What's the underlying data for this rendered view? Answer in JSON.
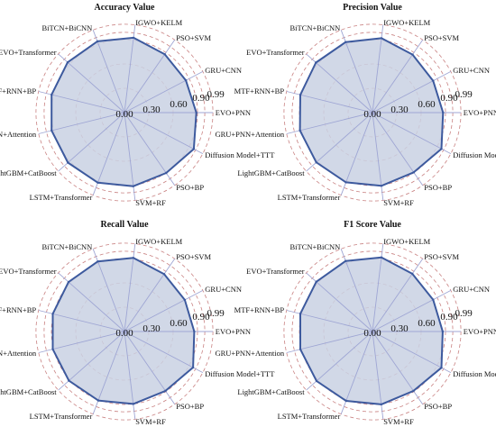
{
  "chart_data": [
    {
      "type": "radar",
      "title": "Accuracy Value",
      "categories": [
        "EVO+PNN",
        "GRU+CNN",
        "PSO+SVM",
        "IGWO+KELM",
        "BiTCN+BiCNN",
        "EVO+Transformer",
        "MTF+RNN+BP",
        "GRU+PNN+Attention",
        "LightGBM+CatBoost",
        "LSTM+Transformer",
        "SVM+RF",
        "PSO+BP",
        "Diffusion Model+TTT"
      ],
      "values": [
        0.885,
        0.855,
        0.875,
        0.93,
        0.94,
        0.935,
        0.925,
        0.925,
        0.93,
        0.925,
        0.915,
        0.905,
        0.965
      ],
      "ticks": [
        "0.00",
        "0.30",
        "0.60",
        "0.90",
        "0.99"
      ],
      "ylim": [
        0,
        1
      ],
      "grid": true
    },
    {
      "type": "radar",
      "title": "Precision Value",
      "categories": [
        "EVO+PNN",
        "GRU+CNN",
        "PSO+SVM",
        "IGWO+KELM",
        "BiTCN+BiCNN",
        "EVO+Transformer",
        "MTF+RNN+BP",
        "GRU+PNN+Attention",
        "LightGBM+CatBoost",
        "LSTM+Transformer",
        "SVM+RF",
        "PSO+BP",
        "Diffusion Model+TTT"
      ],
      "values": [
        0.87,
        0.845,
        0.87,
        0.925,
        0.93,
        0.93,
        0.915,
        0.92,
        0.925,
        0.92,
        0.91,
        0.895,
        0.96
      ],
      "ticks": [
        "0.00",
        "0.30",
        "0.60",
        "0.90",
        "0.99"
      ],
      "ylim": [
        0,
        1
      ],
      "grid": true
    },
    {
      "type": "radar",
      "title": "Recall Value",
      "categories": [
        "EVO+PNN",
        "GRU+CNN",
        "PSO+SVM",
        "IGWO+KELM",
        "BiTCN+BiCNN",
        "EVO+Transformer",
        "MTF+RNN+BP",
        "GRU+PNN+Attention",
        "LightGBM+CatBoost",
        "LSTM+Transformer",
        "SVM+RF",
        "PSO+BP",
        "Diffusion Model+TTT"
      ],
      "values": [
        0.86,
        0.84,
        0.86,
        0.915,
        0.925,
        0.92,
        0.91,
        0.91,
        0.915,
        0.91,
        0.9,
        0.89,
        0.955
      ],
      "ticks": [
        "0.00",
        "0.30",
        "0.60",
        "0.90",
        "0.99"
      ],
      "ylim": [
        0,
        1
      ],
      "grid": true
    },
    {
      "type": "radar",
      "title": "F1 Score Value",
      "categories": [
        "EVO+PNN",
        "GRU+CNN",
        "PSO+SVM",
        "IGWO+KELM",
        "BiTCN+BiCNN",
        "EVO+Transformer",
        "MTF+RNN+BP",
        "GRU+PNN+Attention",
        "LightGBM+CatBoost",
        "LSTM+Transformer",
        "SVM+RF",
        "PSO+BP",
        "Diffusion Model+TTT"
      ],
      "values": [
        0.865,
        0.845,
        0.865,
        0.92,
        0.93,
        0.925,
        0.915,
        0.915,
        0.92,
        0.915,
        0.905,
        0.89,
        0.96
      ],
      "ticks": [
        "0.00",
        "0.30",
        "0.60",
        "0.90",
        "0.99"
      ],
      "ylim": [
        0,
        1
      ],
      "grid": true
    }
  ],
  "colors": {
    "fill": "#c9d1e3",
    "line": "#3d5a9e",
    "spoke": "#9fa6d4",
    "grid_circle": "#c98282",
    "text": "#111111"
  }
}
